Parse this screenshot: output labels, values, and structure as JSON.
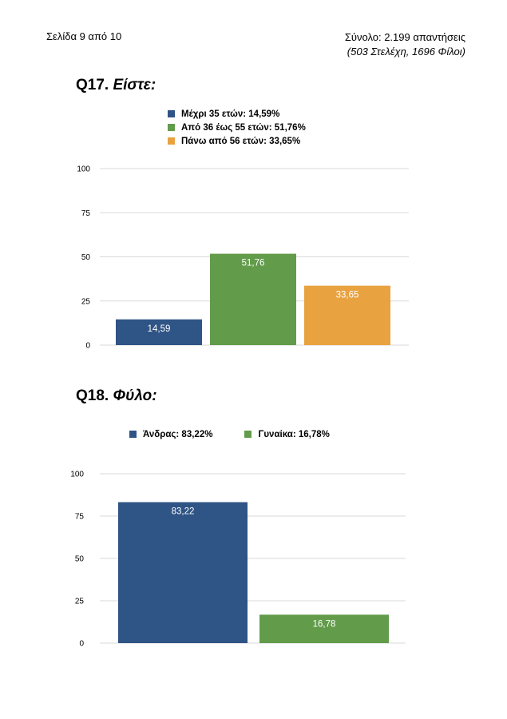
{
  "header": {
    "page_label": "Σελίδα 9 από 10",
    "total": "Σύνολο: 2.199 απαντήσεις",
    "breakdown": "(503 Στελέχη, 1696 Φίλοι)"
  },
  "q17": {
    "number": "Q17.",
    "question": "Είστε:"
  },
  "q18": {
    "number": "Q18.",
    "question": "Φύλο:"
  },
  "colors": {
    "blue": "#2f5486",
    "green": "#629c4a",
    "orange": "#e9a240",
    "grid": "#d9d9d9"
  },
  "chart_data": [
    {
      "type": "bar",
      "categories": [
        "Μέχρι 35 ετών",
        "Από 36 έως 55 ετών",
        "Πάνω από 56 ετών"
      ],
      "values": [
        14.59,
        51.76,
        33.65
      ],
      "value_labels": [
        "14,59",
        "51,76",
        "33,65"
      ],
      "legend": [
        "Μέχρι 35 ετών: 14,59%",
        "Από 36 έως 55 ετών: 51,76%",
        "Πάνω από 56 ετών: 33,65%"
      ],
      "colors": [
        "#2f5486",
        "#629c4a",
        "#e9a240"
      ],
      "ylim": [
        0,
        100
      ],
      "yticks": [
        0,
        25,
        50,
        75,
        100
      ],
      "grid": true,
      "legend_position": "top"
    },
    {
      "type": "bar",
      "categories": [
        "Άνδρας",
        "Γυναίκα"
      ],
      "values": [
        83.22,
        16.78
      ],
      "value_labels": [
        "83,22",
        "16,78"
      ],
      "legend": [
        "Άνδρας: 83,22%",
        "Γυναίκα: 16,78%"
      ],
      "colors": [
        "#2f5486",
        "#629c4a"
      ],
      "ylim": [
        0,
        100
      ],
      "yticks": [
        0,
        25,
        50,
        75,
        100
      ],
      "grid": true,
      "legend_position": "top"
    }
  ]
}
